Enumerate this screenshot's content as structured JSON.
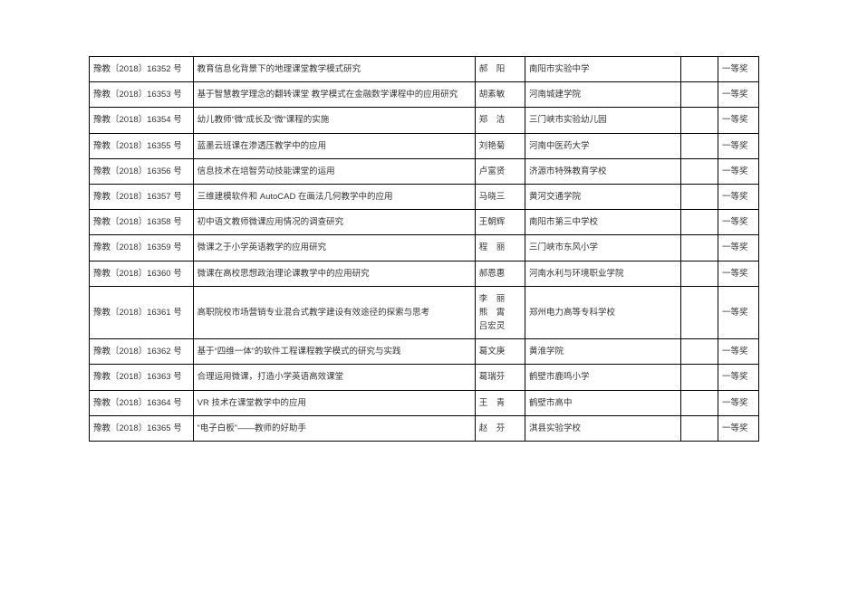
{
  "table": {
    "columns": [
      "id",
      "title",
      "author",
      "school",
      "blank",
      "award"
    ],
    "col_widths": {
      "id": 112,
      "title": 304,
      "author": 54,
      "school": 168,
      "blank": 40,
      "award": 44
    },
    "border_color": "#000000",
    "font_size": 9.5,
    "text_color": "#333333",
    "background": "#ffffff",
    "rows": [
      {
        "id": "豫教〔2018〕16352 号",
        "title": "教育信息化背景下的地理课堂教学模式研究",
        "authors": [
          "郝　阳"
        ],
        "school": "南阳市实验中学",
        "award": "一等奖"
      },
      {
        "id": "豫教〔2018〕16353 号",
        "title": "基于智慧教学理念的翻转课堂 教学模式在金融数学课程中的应用研究",
        "authors": [
          "胡素敏"
        ],
        "school": "河南城建学院",
        "award": "一等奖"
      },
      {
        "id": "豫教〔2018〕16354 号",
        "title": "幼儿教师“微”成长及“微”课程的实施",
        "authors": [
          "郑　洁"
        ],
        "school": "三门峡市实验幼儿园",
        "award": "一等奖"
      },
      {
        "id": "豫教〔2018〕16355 号",
        "title": "蓝墨云班课在渗透压教学中的应用",
        "authors": [
          "刘艳菊"
        ],
        "school": "河南中医药大学",
        "award": "一等奖"
      },
      {
        "id": "豫教〔2018〕16356 号",
        "title": "信息技术在培智劳动技能课堂的运用",
        "authors": [
          "卢富贤"
        ],
        "school": "济源市特殊教育学校",
        "award": "一等奖"
      },
      {
        "id": "豫教〔2018〕16357 号",
        "title": "三维建模软件和 AutoCAD 在画法几何教学中的应用",
        "authors": [
          "马晓三"
        ],
        "school": "黄河交通学院",
        "award": "一等奖"
      },
      {
        "id": "豫教〔2018〕16358 号",
        "title": "初中语文教师微课应用情况的调查研究",
        "authors": [
          "王朝辉"
        ],
        "school": "南阳市第三中学校",
        "award": "一等奖"
      },
      {
        "id": "豫教〔2018〕16359 号",
        "title": "微课之于小学英语教学的应用研究",
        "authors": [
          "程　丽"
        ],
        "school": "三门峡市东风小学",
        "award": "一等奖"
      },
      {
        "id": "豫教〔2018〕16360 号",
        "title": "微课在高校思想政治理论课教学中的应用研究",
        "authors": [
          "郝恩惠"
        ],
        "school": "河南水利与环境职业学院",
        "award": "一等奖"
      },
      {
        "id": "豫教〔2018〕16361 号",
        "title": "高职院校市场营销专业混合式教学建设有效途径的探索与思考",
        "authors": [
          "李　丽",
          "熊　霄",
          "吕宏灵"
        ],
        "school": "郑州电力高等专科学校",
        "award": "一等奖"
      },
      {
        "id": "豫教〔2018〕16362 号",
        "title": "基于“四维一体”的软件工程课程教学模式的研究与实践",
        "authors": [
          "葛文庚"
        ],
        "school": "黄淮学院",
        "award": "一等奖"
      },
      {
        "id": "豫教〔2018〕16363 号",
        "title": "合理运用微课，打造小学英语高效课堂",
        "authors": [
          "葛瑞芬"
        ],
        "school": "鹤壁市鹿鸣小学",
        "award": "一等奖"
      },
      {
        "id": "豫教〔2018〕16364 号",
        "title": "VR 技术在课堂教学中的应用",
        "authors": [
          "王　青"
        ],
        "school": "鹤壁市高中",
        "award": "一等奖"
      },
      {
        "id": "豫教〔2018〕16365 号",
        "title": "“电子白板”——教师的好助手",
        "authors": [
          "赵　芬"
        ],
        "school": "淇县实验学校",
        "award": "一等奖"
      }
    ]
  }
}
